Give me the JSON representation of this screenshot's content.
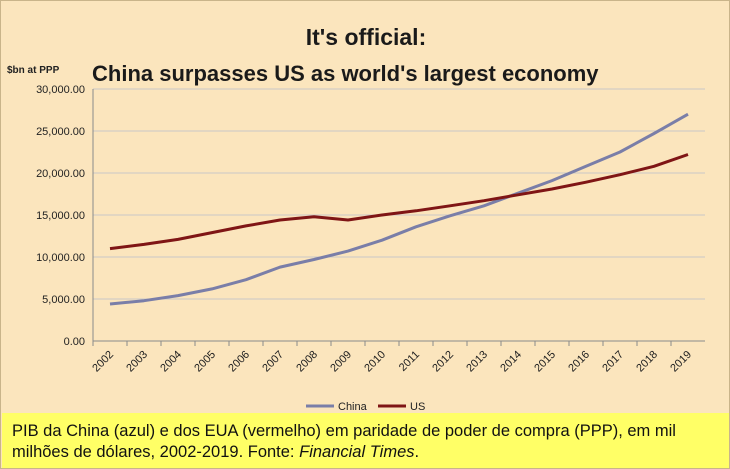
{
  "chart_data": {
    "type": "line",
    "title": "It's official:",
    "subtitle": "China surpasses US as world's largest economy",
    "ylabel": "$bn at PPP",
    "xlabel": "",
    "x": [
      2002,
      2003,
      2004,
      2005,
      2006,
      2007,
      2008,
      2009,
      2010,
      2011,
      2012,
      2013,
      2014,
      2015,
      2016,
      2017,
      2018,
      2019
    ],
    "x_tick_labels": [
      "2002",
      "2003",
      "2004",
      "2005",
      "2006",
      "2007",
      "2008",
      "2009",
      "2010",
      "2011",
      "2012",
      "2013",
      "2014",
      "2015",
      "2016",
      "2017",
      "2018",
      "2019"
    ],
    "ylim": [
      0,
      30000
    ],
    "y_tick_labels": [
      "0.00",
      "5,000.00",
      "10,000.00",
      "15,000.00",
      "20,000.00",
      "25,000.00",
      "30,000.00"
    ],
    "grid": true,
    "legend_position": "bottom",
    "series": [
      {
        "name": "China",
        "color": "#7a7ea8",
        "values": [
          4400,
          4800,
          5400,
          6200,
          7300,
          8800,
          9700,
          10700,
          12000,
          13600,
          14900,
          16100,
          17600,
          19100,
          20800,
          22500,
          24700,
          27000
        ]
      },
      {
        "name": "US",
        "color": "#7f1515",
        "values": [
          11000,
          11500,
          12100,
          12900,
          13700,
          14400,
          14800,
          14400,
          15000,
          15500,
          16100,
          16700,
          17400,
          18100,
          18900,
          19800,
          20800,
          22200
        ]
      }
    ]
  },
  "caption": {
    "text": "PIB da China (azul) e dos EUA (vermelho) em paridade de poder de compra (PPP), em mil milhões de dólares, 2002-2019.  Fonte: ",
    "source": "Financial Times",
    "end": "."
  }
}
